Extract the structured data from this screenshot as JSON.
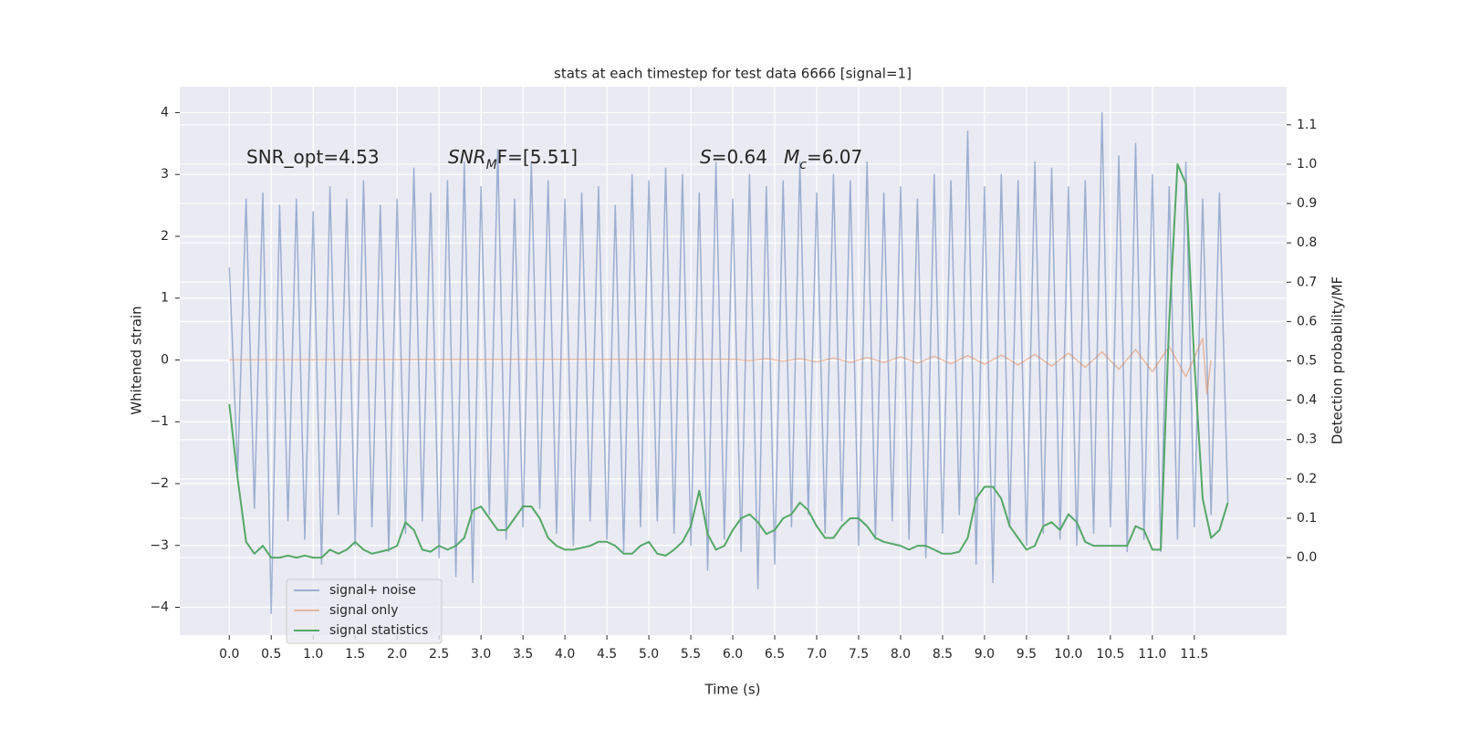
{
  "chart_data": {
    "type": "line",
    "title": "stats at each timestep for test data 6666 [signal=1]",
    "xlabel": "Time (s)",
    "ylabel": "Whitened strain",
    "y2label": "Detection probability/MF",
    "annotations": [
      [
        "SNR_opt=4.53"
      ],
      [
        "SNR",
        "M",
        "F=[5.51]"
      ],
      [
        "S",
        "=0.64"
      ],
      [
        "M",
        "c",
        "=6.07"
      ]
    ],
    "grid": true,
    "legend": "lower left",
    "xlim": [
      -0.59,
      12.6
    ],
    "ylim": [
      -4.45,
      4.42
    ],
    "y2lim": [
      -0.197,
      1.197
    ],
    "xticks": [
      {
        "value": 0,
        "label": "0.0"
      },
      0.5,
      {
        "value": 1,
        "label": "1.0"
      },
      1.5,
      {
        "value": 2,
        "label": "2.0"
      },
      2.5,
      {
        "value": 3,
        "label": "3.0"
      },
      3.5,
      {
        "value": 4,
        "label": "4.0"
      },
      4.5,
      {
        "value": 5,
        "label": "5.0"
      },
      5.5,
      {
        "value": 6,
        "label": "6.0"
      },
      6.5,
      {
        "value": 7,
        "label": "7.0"
      },
      7.5,
      {
        "value": 8,
        "label": "8.0"
      },
      8.5,
      {
        "value": 9,
        "label": "9.0"
      },
      9.5,
      {
        "value": 10,
        "label": "10.0"
      },
      10.5,
      {
        "value": 11,
        "label": "11.0"
      },
      11.5
    ],
    "yticks": [
      {
        "value": -4,
        "label": "−4"
      },
      {
        "value": -3,
        "label": "−3"
      },
      {
        "value": -2,
        "label": "−2"
      },
      {
        "value": -1,
        "label": "−1"
      },
      0,
      1,
      2,
      3,
      4
    ],
    "y2ticks": [
      {
        "value": 0,
        "label": "0.0"
      },
      0.1,
      0.2,
      0.3,
      0.4,
      0.5,
      0.6,
      0.7,
      0.8,
      0.9,
      {
        "value": 1,
        "label": "1.0"
      },
      1.1
    ],
    "series": [
      {
        "name": "signal+ noise",
        "color": "#4c72b0",
        "opacity": 0.5,
        "x": [
          0,
          0.1,
          0.2,
          0.3,
          0.4,
          0.5,
          0.6,
          0.7,
          0.8,
          0.9,
          1,
          1.1,
          1.2,
          1.3,
          1.4,
          1.5,
          1.6,
          1.7,
          1.8,
          1.9,
          2,
          2.1,
          2.2,
          2.3,
          2.4,
          2.5,
          2.6,
          2.7,
          2.8,
          2.9,
          3,
          3.1,
          3.2,
          3.3,
          3.4,
          3.5,
          3.6,
          3.7,
          3.8,
          3.9,
          4,
          4.1,
          4.2,
          4.3,
          4.4,
          4.5,
          4.6,
          4.7,
          4.8,
          4.9,
          5,
          5.1,
          5.2,
          5.3,
          5.4,
          5.5,
          5.6,
          5.7,
          5.8,
          5.9,
          6,
          6.1,
          6.2,
          6.3,
          6.4,
          6.5,
          6.6,
          6.7,
          6.8,
          6.9,
          7,
          7.1,
          7.2,
          7.3,
          7.4,
          7.5,
          7.6,
          7.7,
          7.8,
          7.9,
          8,
          8.1,
          8.2,
          8.3,
          8.4,
          8.5,
          8.6,
          8.7,
          8.8,
          8.9,
          9,
          9.1,
          9.2,
          9.3,
          9.4,
          9.5,
          9.6,
          9.7,
          9.8,
          9.9,
          10,
          10.1,
          10.2,
          10.3,
          10.4,
          10.5,
          10.6,
          10.7,
          10.8,
          10.9,
          11,
          11.1,
          11.2,
          11.3,
          11.4,
          11.5,
          11.6,
          11.7,
          11.8,
          11.9
        ],
        "values": [
          1.5,
          -1.8,
          2.6,
          -2.4,
          2.7,
          -4.1,
          2.5,
          -2.6,
          2.6,
          -2.9,
          2.4,
          -3.3,
          2.8,
          -2.5,
          2.6,
          -3.0,
          2.9,
          -2.7,
          2.5,
          -3.1,
          2.6,
          -2.8,
          3.1,
          -2.6,
          2.7,
          -3.2,
          2.9,
          -3.5,
          3.2,
          -3.6,
          2.8,
          -2.5,
          3.4,
          -2.9,
          2.6,
          -2.7,
          3.2,
          -2.4,
          2.9,
          -2.8,
          2.6,
          -3.0,
          2.7,
          -2.6,
          2.8,
          -2.9,
          2.5,
          -3.1,
          3.0,
          -2.7,
          2.9,
          -2.6,
          3.1,
          -2.8,
          3.0,
          -3.0,
          2.7,
          -3.4,
          3.2,
          -2.9,
          2.6,
          -3.1,
          3.0,
          -3.7,
          2.8,
          -3.3,
          2.9,
          -2.7,
          3.2,
          -2.5,
          2.7,
          -2.8,
          3.0,
          -2.6,
          2.9,
          -3.0,
          3.2,
          -2.9,
          2.7,
          -2.6,
          2.8,
          -2.9,
          2.6,
          -3.2,
          3.0,
          -2.8,
          2.9,
          -2.5,
          3.7,
          -3.3,
          2.8,
          -3.6,
          3.0,
          -2.7,
          2.9,
          -3.0,
          3.2,
          -2.8,
          3.1,
          -2.9,
          2.8,
          -3.0,
          2.9,
          -2.8,
          4.0,
          -2.7,
          3.3,
          -3.1,
          3.5,
          -2.9,
          3.0,
          -3.1,
          2.8,
          -2.9,
          3.2,
          -2.7,
          2.6,
          -2.5,
          2.7,
          -2.3
        ]
      },
      {
        "name": "signal only",
        "color": "#dd8452",
        "opacity": 0.5,
        "x": [
          0,
          6.0,
          6.2,
          6.4,
          6.6,
          6.8,
          7.0,
          7.2,
          7.4,
          7.6,
          7.8,
          8.0,
          8.2,
          8.4,
          8.6,
          8.8,
          9.0,
          9.2,
          9.4,
          9.6,
          9.8,
          10.0,
          10.2,
          10.4,
          10.6,
          10.8,
          11.0,
          11.2,
          11.4,
          11.6,
          11.65,
          11.7
        ],
        "values": [
          0,
          0.01,
          -0.01,
          0.02,
          -0.02,
          0.02,
          -0.03,
          0.03,
          -0.04,
          0.04,
          -0.04,
          0.05,
          -0.05,
          0.06,
          -0.06,
          0.07,
          -0.07,
          0.08,
          -0.08,
          0.09,
          -0.1,
          0.11,
          -0.12,
          0.13,
          -0.15,
          0.17,
          -0.19,
          0.22,
          -0.27,
          0.35,
          -0.55,
          0
        ]
      },
      {
        "name": "signal statistics",
        "color": "#55a868",
        "opacity": 1,
        "axis": "y2",
        "x": [
          0,
          0.1,
          0.2,
          0.3,
          0.4,
          0.5,
          0.6,
          0.7,
          0.8,
          0.9,
          1,
          1.1,
          1.2,
          1.3,
          1.4,
          1.5,
          1.6,
          1.7,
          1.8,
          1.9,
          2,
          2.1,
          2.2,
          2.3,
          2.4,
          2.5,
          2.6,
          2.7,
          2.8,
          2.9,
          3,
          3.1,
          3.2,
          3.3,
          3.4,
          3.5,
          3.6,
          3.7,
          3.8,
          3.9,
          4,
          4.1,
          4.2,
          4.3,
          4.4,
          4.5,
          4.6,
          4.7,
          4.8,
          4.9,
          5,
          5.1,
          5.2,
          5.3,
          5.4,
          5.5,
          5.6,
          5.7,
          5.8,
          5.9,
          6,
          6.1,
          6.2,
          6.3,
          6.4,
          6.5,
          6.6,
          6.7,
          6.8,
          6.9,
          7,
          7.1,
          7.2,
          7.3,
          7.4,
          7.5,
          7.6,
          7.7,
          7.8,
          7.9,
          8,
          8.1,
          8.2,
          8.3,
          8.4,
          8.5,
          8.6,
          8.7,
          8.8,
          8.9,
          9,
          9.1,
          9.2,
          9.3,
          9.4,
          9.5,
          9.6,
          9.7,
          9.8,
          9.9,
          10,
          10.1,
          10.2,
          10.3,
          10.4,
          10.5,
          10.6,
          10.7,
          10.8,
          10.9,
          11,
          11.1,
          11.2,
          11.3,
          11.4,
          11.5,
          11.6,
          11.7,
          11.8,
          11.9
        ],
        "values": [
          0.39,
          0.2,
          0.04,
          0.01,
          0.03,
          0.0,
          0.0,
          0.005,
          0.0,
          0.005,
          0.0,
          0.0,
          0.02,
          0.01,
          0.02,
          0.04,
          0.02,
          0.01,
          0.015,
          0.02,
          0.03,
          0.09,
          0.07,
          0.02,
          0.015,
          0.03,
          0.02,
          0.03,
          0.05,
          0.12,
          0.13,
          0.1,
          0.07,
          0.07,
          0.1,
          0.13,
          0.13,
          0.1,
          0.05,
          0.03,
          0.02,
          0.02,
          0.025,
          0.03,
          0.04,
          0.04,
          0.03,
          0.01,
          0.01,
          0.03,
          0.04,
          0.01,
          0.005,
          0.02,
          0.04,
          0.08,
          0.17,
          0.06,
          0.02,
          0.03,
          0.07,
          0.1,
          0.11,
          0.09,
          0.06,
          0.07,
          0.1,
          0.11,
          0.14,
          0.12,
          0.08,
          0.05,
          0.05,
          0.08,
          0.1,
          0.1,
          0.08,
          0.05,
          0.04,
          0.035,
          0.03,
          0.02,
          0.03,
          0.03,
          0.02,
          0.01,
          0.01,
          0.015,
          0.05,
          0.15,
          0.18,
          0.18,
          0.15,
          0.08,
          0.05,
          0.02,
          0.03,
          0.08,
          0.09,
          0.07,
          0.11,
          0.09,
          0.04,
          0.03,
          0.03,
          0.03,
          0.03,
          0.03,
          0.08,
          0.07,
          0.02,
          0.02,
          0.6,
          1.0,
          0.95,
          0.5,
          0.15,
          0.05,
          0.07,
          0.14
        ]
      }
    ]
  }
}
